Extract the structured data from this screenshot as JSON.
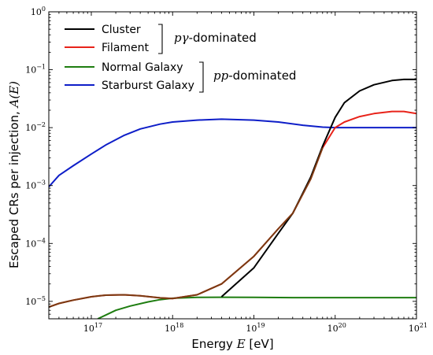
{
  "chart_data": {
    "type": "line",
    "xlabel_prefix": "Energy",
    "xlabel_var": "E",
    "xlabel_unit": "[eV]",
    "ylabel_prefix": "Escaped CRs per injection,",
    "ylabel_var": "A(E)",
    "xscale": "log",
    "yscale": "log",
    "xlim": [
      3e+16,
      1e+21
    ],
    "ylim": [
      5e-06,
      1
    ],
    "x_ticks": [
      {
        "value": 1e+17,
        "mant": "10",
        "exp": "17"
      },
      {
        "value": 1e+18,
        "mant": "10",
        "exp": "18"
      },
      {
        "value": 1e+19,
        "mant": "10",
        "exp": "19"
      },
      {
        "value": 1e+20,
        "mant": "10",
        "exp": "20"
      },
      {
        "value": 1e+21,
        "mant": "10",
        "exp": "21"
      }
    ],
    "y_ticks": [
      {
        "value": 1e-05,
        "mant": "10",
        "exp": "−5"
      },
      {
        "value": 0.0001,
        "mant": "10",
        "exp": "−4"
      },
      {
        "value": 0.001,
        "mant": "10",
        "exp": "−3"
      },
      {
        "value": 0.01,
        "mant": "10",
        "exp": "−2"
      },
      {
        "value": 0.1,
        "mant": "10",
        "exp": "−1"
      },
      {
        "value": 1,
        "mant": "10",
        "exp": "0"
      }
    ],
    "legend_position": "top-left",
    "groups": [
      {
        "label_var": "pγ",
        "label_text": "-dominated",
        "series": [
          0,
          1
        ]
      },
      {
        "label_var": "pp",
        "label_text": "-dominated",
        "series": [
          2,
          3
        ]
      }
    ],
    "series": [
      {
        "name": "Cluster",
        "color": "#000000",
        "x": [
          4e+18,
          1e+19,
          2e+19,
          3e+19,
          5e+19,
          7e+19,
          1e+20,
          1.3e+20,
          2e+20,
          3e+20,
          5e+20,
          7e+20,
          1e+21
        ],
        "y": [
          1.2e-05,
          3.8e-05,
          0.00015,
          0.00033,
          0.0014,
          0.0048,
          0.015,
          0.027,
          0.043,
          0.055,
          0.065,
          0.068,
          0.068
        ]
      },
      {
        "name": "Filament",
        "color": "#e8231a",
        "x": [
          3e+16,
          4e+16,
          6e+16,
          1e+17,
          1.5e+17,
          2.5e+17,
          4e+17,
          7e+17,
          1e+18,
          2e+18,
          4e+18,
          1e+19,
          2e+19,
          3e+19,
          5e+19,
          7e+19,
          1e+20,
          1.3e+20,
          2e+20,
          3e+20,
          5e+20,
          7e+20,
          1e+21
        ],
        "y": [
          8e-06,
          9.2e-06,
          1.05e-05,
          1.2e-05,
          1.28e-05,
          1.3e-05,
          1.25e-05,
          1.15e-05,
          1.12e-05,
          1.3e-05,
          2e-05,
          6e-05,
          0.00018,
          0.00033,
          0.0013,
          0.0045,
          0.01,
          0.0125,
          0.0155,
          0.0175,
          0.019,
          0.019,
          0.0175
        ]
      },
      {
        "name": "Normal Galaxy",
        "color": "#1e7d10",
        "x": [
          1.2e+17,
          1.5e+17,
          2e+17,
          3e+17,
          5e+17,
          7e+17,
          1e+18,
          2e+18,
          4e+18,
          1e+19,
          3e+19,
          1e+20,
          3e+20,
          1e+21
        ],
        "y": [
          5e-06,
          5.8e-06,
          7e-06,
          8.3e-06,
          9.8e-06,
          1.07e-05,
          1.13e-05,
          1.17e-05,
          1.18e-05,
          1.17e-05,
          1.16e-05,
          1.16e-05,
          1.16e-05,
          1.16e-05
        ]
      },
      {
        "name": "Starburst Galaxy",
        "color": "#0e1ec8",
        "x": [
          3e+16,
          4e+16,
          6e+16,
          1e+17,
          1.5e+17,
          2.5e+17,
          4e+17,
          7e+17,
          1e+18,
          2e+18,
          4e+18,
          1e+19,
          2e+19,
          4e+19,
          7e+19,
          1e+20,
          1.5e+20,
          2e+20,
          5e+20,
          1e+21
        ],
        "y": [
          0.00095,
          0.0015,
          0.0022,
          0.0035,
          0.005,
          0.0073,
          0.0095,
          0.0115,
          0.0125,
          0.0135,
          0.014,
          0.0135,
          0.0125,
          0.011,
          0.0102,
          0.01,
          0.01,
          0.01,
          0.01,
          0.01
        ]
      }
    ],
    "overlap_series": {
      "name": "",
      "color": "#7a3a12",
      "x": [
        3e+16,
        4e+16,
        6e+16,
        1e+17,
        1.5e+17,
        2.5e+17,
        4e+17,
        7e+17,
        1e+18,
        2e+18,
        4e+18,
        1e+19,
        2e+19,
        3e+19,
        5e+19,
        7e+19
      ],
      "y": [
        8e-06,
        9.2e-06,
        1.05e-05,
        1.2e-05,
        1.28e-05,
        1.3e-05,
        1.25e-05,
        1.15e-05,
        1.12e-05,
        1.3e-05,
        2e-05,
        6e-05,
        0.00018,
        0.00033,
        0.0013,
        0.0045
      ]
    }
  }
}
